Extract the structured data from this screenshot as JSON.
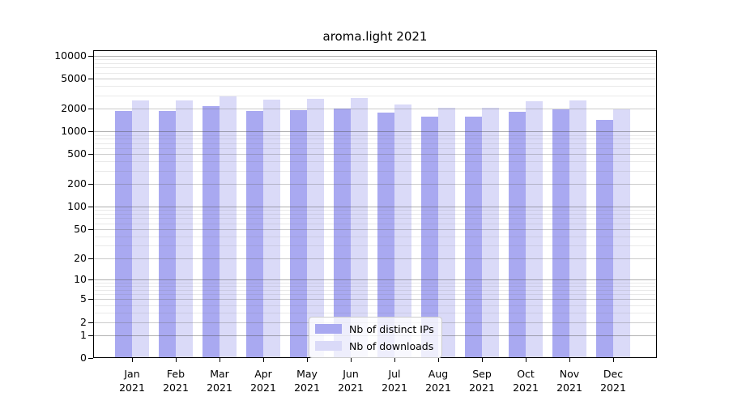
{
  "title": "aroma.light 2021",
  "chart_data": {
    "type": "bar",
    "title": "aroma.light 2021",
    "x": {
      "months": [
        "Jan",
        "Feb",
        "Mar",
        "Apr",
        "May",
        "Jun",
        "Jul",
        "Aug",
        "Sep",
        "Oct",
        "Nov",
        "Dec"
      ],
      "year": "2021"
    },
    "y_axis": {
      "scale": "log10(1+x)",
      "range": [
        0,
        10000
      ],
      "ticks": [
        10000,
        5000,
        2000,
        1000,
        500,
        200,
        100,
        50,
        20,
        10,
        5,
        2,
        1,
        0
      ],
      "tick_labels": [
        "10000",
        "5000",
        "2000",
        "1000",
        "500",
        "200",
        "100",
        "50",
        "20",
        "10",
        "5",
        "2",
        "1",
        "0"
      ]
    },
    "series": [
      {
        "name": "Nb of distinct IPs",
        "color": "#a9a9f1",
        "values": [
          1880,
          1850,
          2160,
          1880,
          1910,
          2000,
          1780,
          1570,
          1550,
          1840,
          1950,
          1430
        ]
      },
      {
        "name": "Nb of downloads",
        "color": "#dadaf8",
        "values": [
          2570,
          2570,
          2910,
          2650,
          2720,
          2770,
          2290,
          2050,
          2060,
          2510,
          2550,
          1960
        ]
      }
    ],
    "grid": "horizontal log major+minor gridlines",
    "legend_position": "inside bottom-center"
  },
  "legend": {
    "items": [
      {
        "label": "Nb of distinct IPs"
      },
      {
        "label": "Nb of downloads"
      }
    ]
  }
}
